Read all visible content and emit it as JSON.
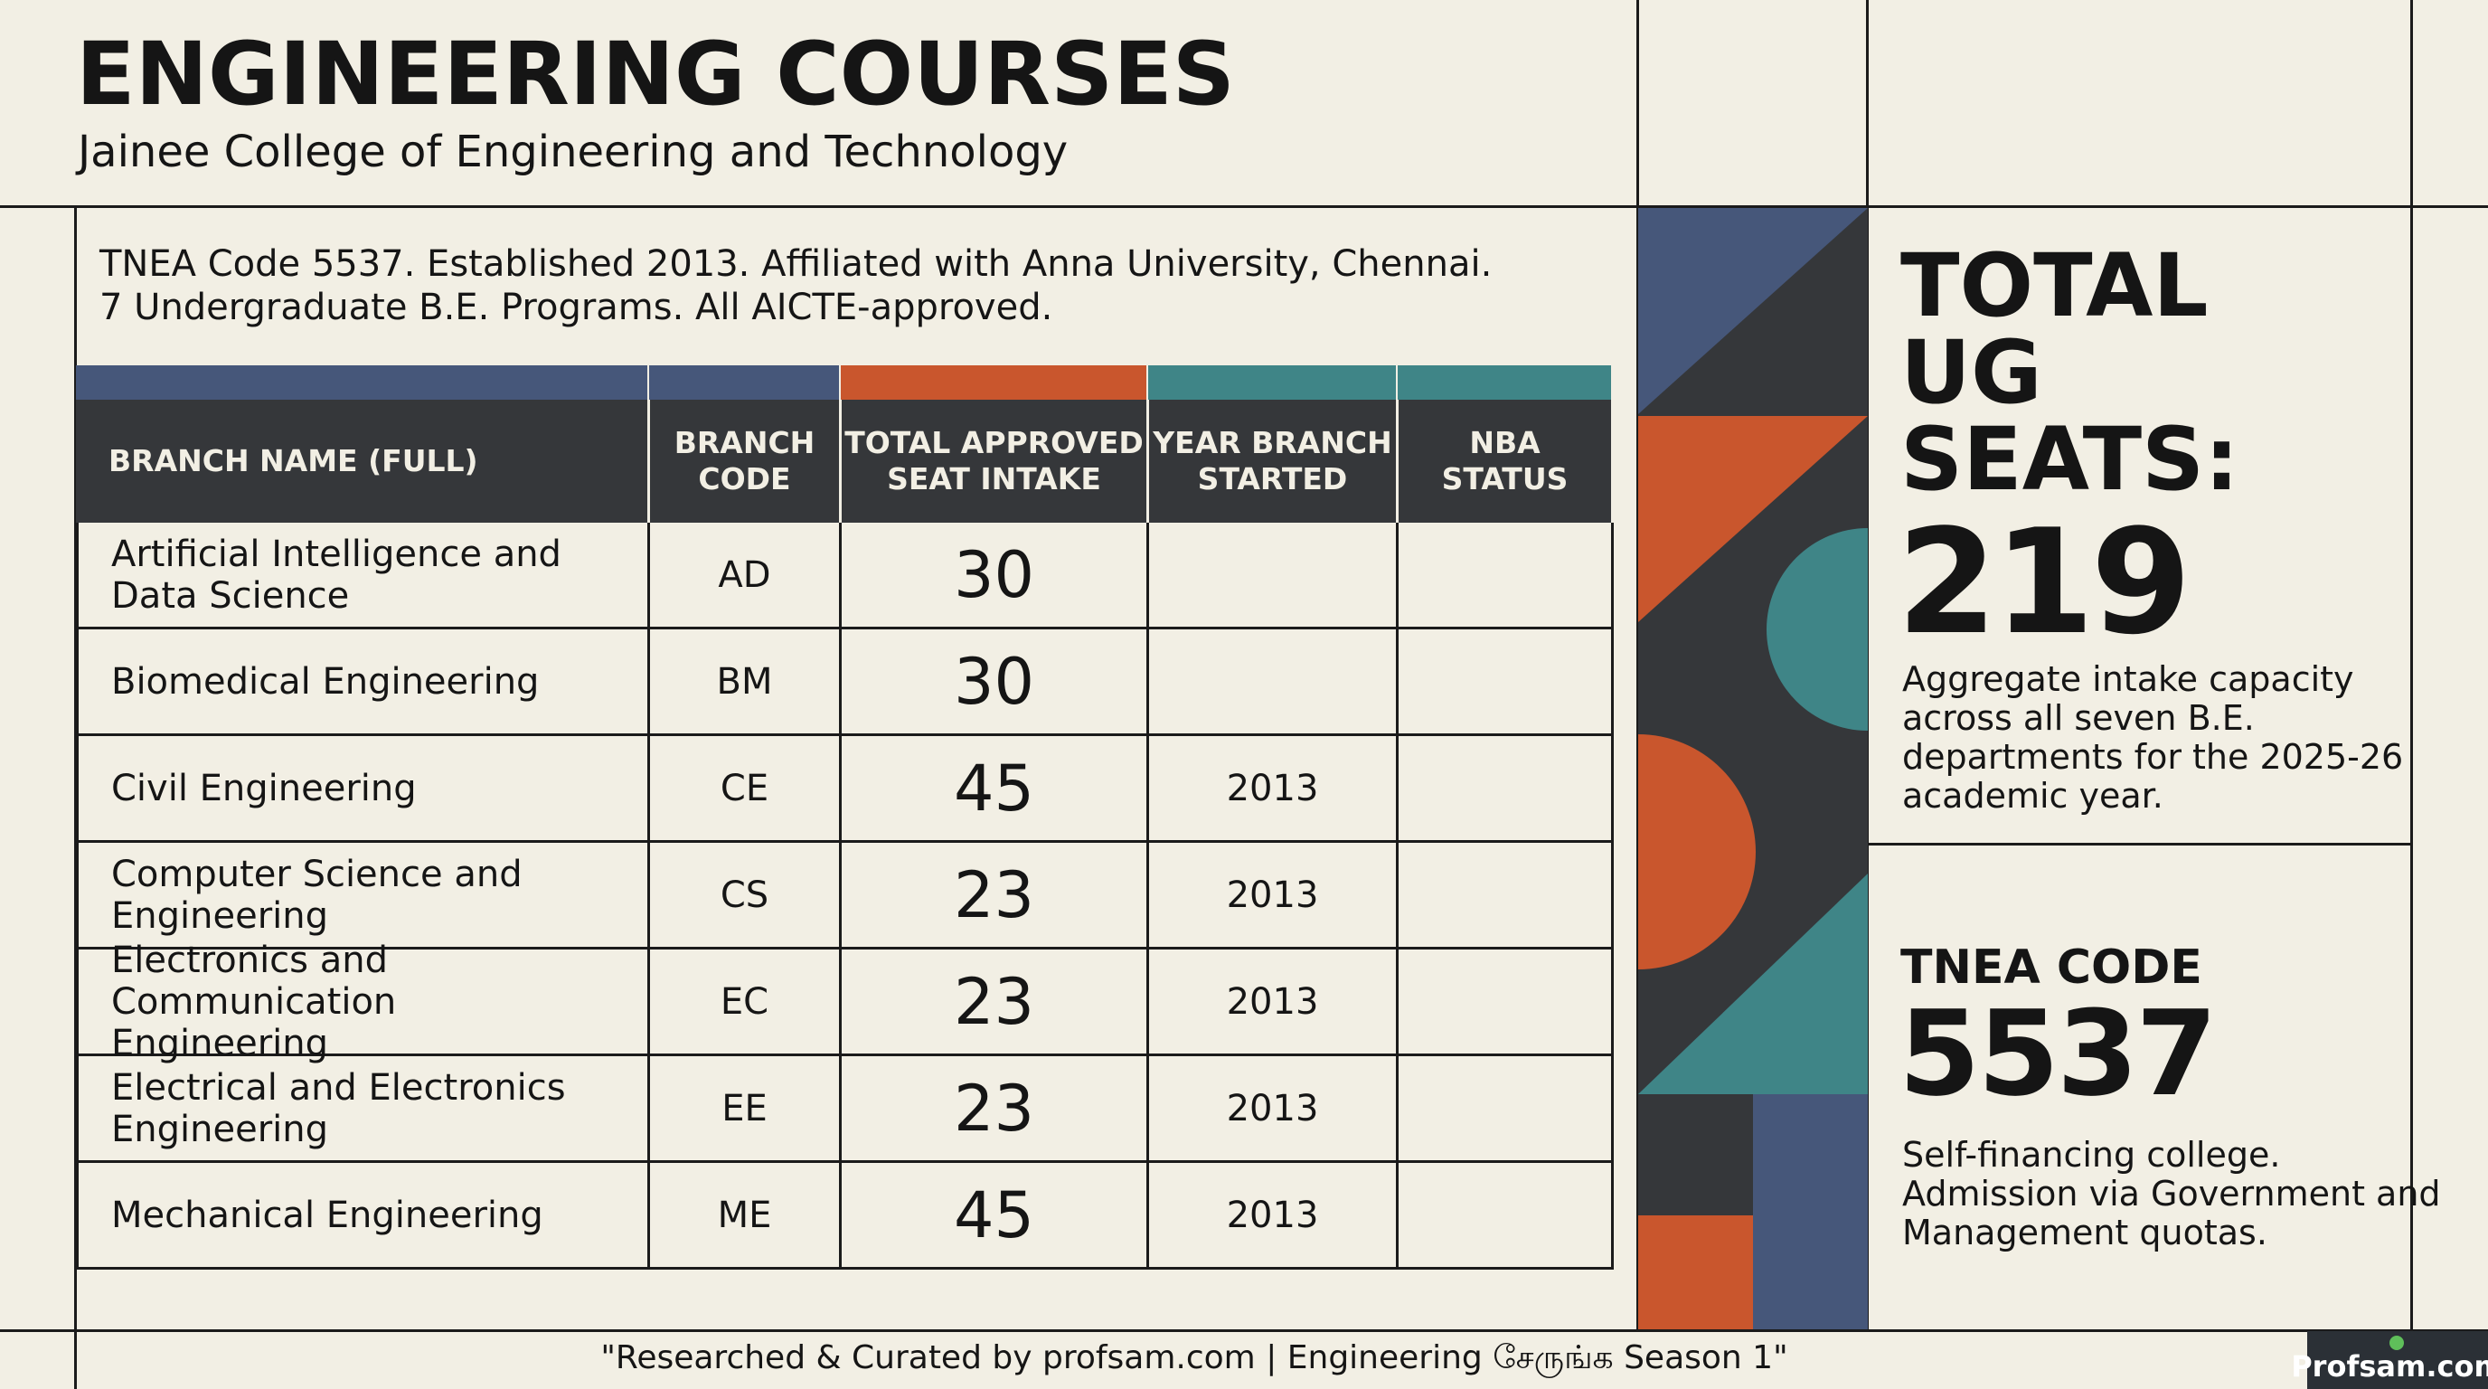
{
  "header": {
    "title": "ENGINEERING COURSES",
    "subtitle": "Jainee College of Engineering and Technology"
  },
  "intro": {
    "line1": "TNEA Code 5537. Established 2013. Affiliated with Anna University, Chennai.",
    "line2": "7 Undergraduate B.E. Programs. All AICTE-approved."
  },
  "colors": {
    "navy": "#46577a",
    "orange": "#c9562d",
    "teal": "#3f8587",
    "charcoal": "#35373a",
    "background": "#f2efe4"
  },
  "table": {
    "headers": {
      "branch_name_1": "BRANCH NAME (FULL)",
      "branch_code_1": "BRANCH",
      "branch_code_2": "CODE",
      "seat_intake_1": "TOTAL APPROVED",
      "seat_intake_2": "SEAT INTAKE",
      "year_1": "YEAR BRANCH",
      "year_2": "STARTED",
      "nba_1": "NBA",
      "nba_2": "STATUS"
    },
    "rows": [
      {
        "name_1": "Artificial Intelligence and",
        "name_2": "Data Science",
        "code": "AD",
        "seats": "30",
        "year": "",
        "nba": ""
      },
      {
        "name_1": "Biomedical Engineering",
        "name_2": "",
        "code": "BM",
        "seats": "30",
        "year": "",
        "nba": ""
      },
      {
        "name_1": "Civil Engineering",
        "name_2": "",
        "code": "CE",
        "seats": "45",
        "year": "2013",
        "nba": ""
      },
      {
        "name_1": "Computer Science and",
        "name_2": "Engineering",
        "code": "CS",
        "seats": "23",
        "year": "2013",
        "nba": ""
      },
      {
        "name_1": "Electronics and Communication",
        "name_2": "Engineering",
        "code": "EC",
        "seats": "23",
        "year": "2013",
        "nba": ""
      },
      {
        "name_1": "Electrical and Electronics",
        "name_2": "Engineering",
        "code": "EE",
        "seats": "23",
        "year": "2013",
        "nba": ""
      },
      {
        "name_1": "Mechanical Engineering",
        "name_2": "",
        "code": "ME",
        "seats": "45",
        "year": "2013",
        "nba": ""
      }
    ]
  },
  "panel": {
    "title_1": "TOTAL",
    "title_2": "UG",
    "title_3": "SEATS:",
    "total_seats": "219",
    "desc_1": "Aggregate intake capacity",
    "desc_2": "across all seven B.E.",
    "desc_3": "departments for the 2025-26",
    "desc_4": "academic year.",
    "code_label": "TNEA CODE",
    "code_value": "5537",
    "desc2_1": "Self-financing college.",
    "desc2_2": "Admission via Government and",
    "desc2_3": "Management quotas."
  },
  "footer": {
    "credit": "\"Researched & Curated by profsam.com | Engineering சேருங்க Season 1\"",
    "logo_text": "Profsam.com"
  }
}
